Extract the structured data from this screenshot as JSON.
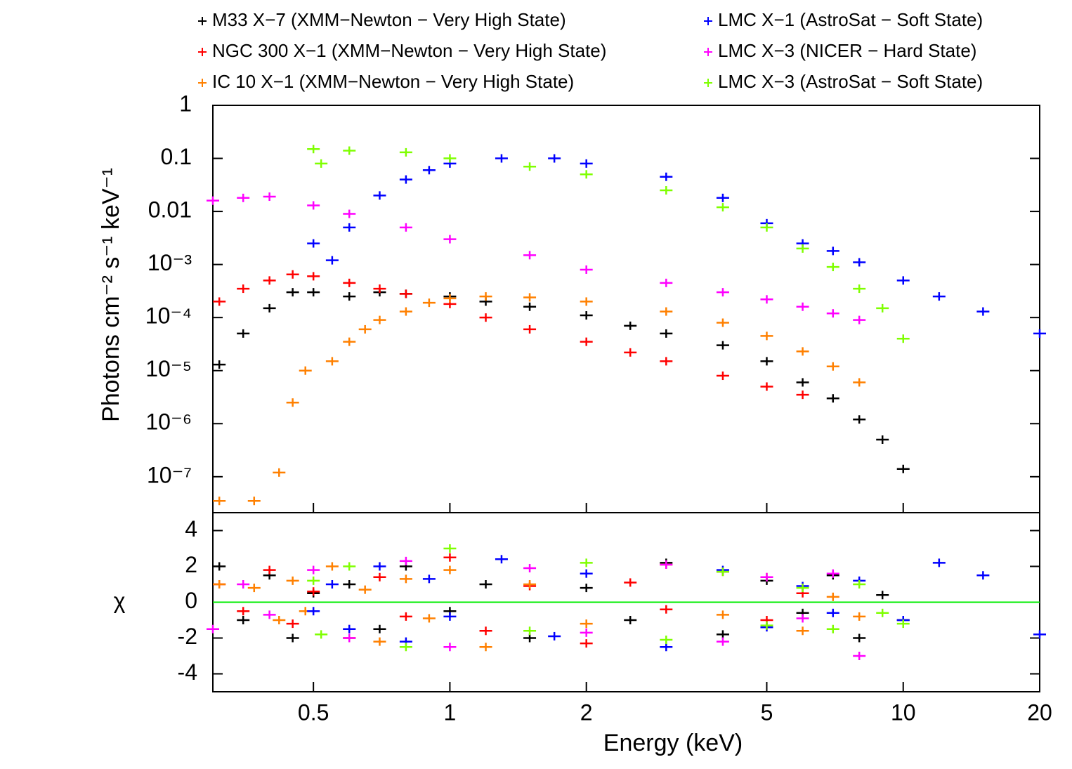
{
  "chart_data": {
    "type": "scatter",
    "xlabel": "Energy (keV)",
    "ylabel": "Photons cm⁻² s⁻¹ keV⁻¹",
    "residual_ylabel": "χ",
    "log_x": true,
    "log_y": true,
    "xlim": [
      0.3,
      20
    ],
    "ylim": [
      2.1e-08,
      1
    ],
    "residual_ylim": [
      -5,
      5
    ],
    "xticks": [
      0.5,
      1,
      2,
      5,
      10,
      20
    ],
    "yticks": [
      1,
      0.1,
      0.01,
      {
        "value": 0.001,
        "label": "10⁻³"
      },
      {
        "value": 0.0001,
        "label": "10⁻⁴"
      },
      {
        "value": 1e-05,
        "label": "10⁻⁵"
      },
      {
        "value": 1e-06,
        "label": "10⁻⁶"
      },
      {
        "value": 1e-07,
        "label": "10⁻⁷"
      }
    ],
    "residual_yticks": [
      4,
      2,
      0,
      -2,
      -4
    ],
    "series": [
      {
        "name": "M33 X−7 (XMM−Newton − Very High State)",
        "color": "#000000",
        "x": [
          0.31,
          0.35,
          0.4,
          0.45,
          0.5,
          0.6,
          0.7,
          0.8,
          1.0,
          1.2,
          1.5,
          2,
          2.5,
          3,
          4,
          5,
          6,
          7,
          8,
          9,
          10
        ],
        "values": [
          1.3e-05,
          5e-05,
          0.00015,
          0.0003,
          0.0003,
          0.00025,
          0.0003,
          0.00028,
          0.00025,
          0.0002,
          0.00016,
          0.00011,
          7e-05,
          5e-05,
          3e-05,
          1.5e-05,
          6e-06,
          3e-06,
          1.2e-06,
          5e-07,
          1.4e-07
        ],
        "residuals": [
          2,
          -1,
          1.5,
          -2,
          0.5,
          1,
          -1.5,
          2,
          -0.5,
          1,
          -2,
          0.8,
          -1,
          2.2,
          -1.8,
          1.2,
          -0.6,
          1.5,
          -2,
          0.4,
          -1
        ]
      },
      {
        "name": "NGC 300 X−1 (XMM−Newton − Very High State)",
        "color": "#ff0000",
        "x": [
          0.31,
          0.35,
          0.4,
          0.45,
          0.5,
          0.6,
          0.7,
          0.8,
          1.0,
          1.2,
          1.5,
          2,
          2.5,
          3,
          4,
          5,
          6
        ],
        "values": [
          0.0002,
          0.00035,
          0.0005,
          0.00065,
          0.0006,
          0.00045,
          0.00035,
          0.00028,
          0.00018,
          0.0001,
          6e-05,
          3.5e-05,
          2.2e-05,
          1.5e-05,
          8e-06,
          5e-06,
          3.5e-06
        ],
        "residuals": [
          1,
          -0.5,
          1.8,
          -1.2,
          0.6,
          -2,
          1.4,
          -0.8,
          2.5,
          -1.6,
          0.9,
          -2.3,
          1.1,
          -0.4,
          1.7,
          -1,
          0.5
        ]
      },
      {
        "name": "IC 10 X−1 (XMM−Newton − Very High State)",
        "color": "#ff8000",
        "x": [
          0.31,
          0.37,
          0.42,
          0.45,
          0.48,
          0.55,
          0.6,
          0.65,
          0.7,
          0.8,
          0.9,
          1.0,
          1.2,
          1.5,
          2,
          3,
          4,
          5,
          6,
          7,
          8
        ],
        "values": [
          3.5e-08,
          3.5e-08,
          1.2e-07,
          2.5e-06,
          1e-05,
          1.5e-05,
          3.5e-05,
          6e-05,
          9e-05,
          0.00013,
          0.00019,
          0.00023,
          0.00025,
          0.00024,
          0.0002,
          0.00013,
          8e-05,
          4.5e-05,
          2.3e-05,
          1.2e-05,
          6e-06
        ],
        "residuals": [
          1,
          0.8,
          -1,
          1.2,
          -0.5,
          2,
          -1.5,
          0.7,
          -2.2,
          1.3,
          -0.9,
          1.8,
          -2.5,
          1,
          -1.2,
          2.1,
          -0.7,
          1.4,
          -1.6,
          0.3,
          -0.8
        ]
      },
      {
        "name": "LMC X−1 (AstroSat − Soft State)",
        "color": "#0000ff",
        "x": [
          0.5,
          0.55,
          0.6,
          0.7,
          0.8,
          0.9,
          1.0,
          1.3,
          1.7,
          2,
          3,
          4,
          5,
          6,
          7,
          8,
          10,
          12,
          15,
          20
        ],
        "values": [
          0.0025,
          0.0012,
          0.005,
          0.02,
          0.04,
          0.06,
          0.08,
          0.1,
          0.1,
          0.08,
          0.045,
          0.018,
          0.006,
          0.0025,
          0.0018,
          0.0011,
          0.0005,
          0.00025,
          0.00013,
          5e-05
        ],
        "residuals": [
          -0.5,
          1,
          -1.5,
          2,
          -2.2,
          1.3,
          -0.8,
          2.4,
          -1.9,
          1.6,
          -2.5,
          1.8,
          -1.4,
          0.9,
          -0.6,
          1.2,
          -1,
          2.2,
          1.5,
          -1.8
        ]
      },
      {
        "name": "LMC X−3 (NICER − Hard State)",
        "color": "#ff00ff",
        "x": [
          0.3,
          0.35,
          0.4,
          0.5,
          0.6,
          0.8,
          1.0,
          1.5,
          2,
          3,
          4,
          5,
          6,
          7,
          8
        ],
        "values": [
          0.016,
          0.018,
          0.019,
          0.013,
          0.009,
          0.005,
          0.003,
          0.0015,
          0.0008,
          0.00045,
          0.0003,
          0.00022,
          0.00016,
          0.00012,
          9e-05
        ],
        "residuals": [
          -1.5,
          1,
          -0.7,
          1.8,
          -2,
          2.3,
          -2.5,
          1.9,
          -1.7,
          2.1,
          -2.2,
          1.4,
          -0.9,
          1.6,
          -3
        ]
      },
      {
        "name": "LMC X−3 (AstroSat − Soft State)",
        "color": "#7fff00",
        "x": [
          0.5,
          0.52,
          0.6,
          0.8,
          1.0,
          1.5,
          2,
          3,
          4,
          5,
          6,
          7,
          8,
          9,
          10
        ],
        "values": [
          0.15,
          0.08,
          0.14,
          0.13,
          0.1,
          0.07,
          0.05,
          0.025,
          0.012,
          0.005,
          0.002,
          0.0009,
          0.00035,
          0.00015,
          4e-05
        ],
        "residuals": [
          1.2,
          -1.8,
          2,
          -2.5,
          3,
          -1.6,
          2.2,
          -2.1,
          1.7,
          -1.3,
          0.8,
          -1.5,
          1,
          -0.6,
          -1.2
        ]
      }
    ]
  }
}
